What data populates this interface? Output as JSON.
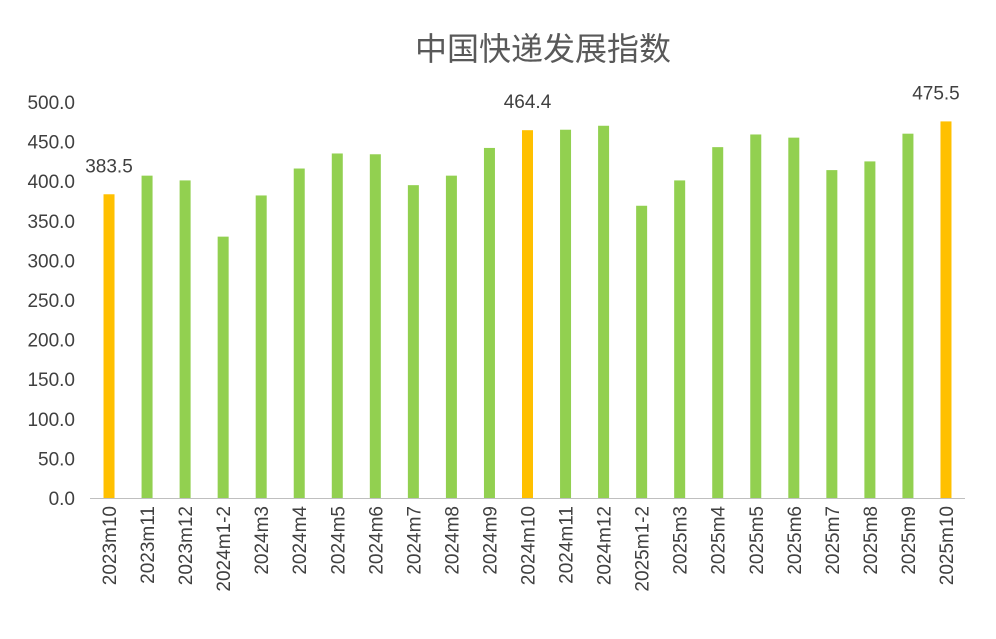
{
  "chart_data": {
    "type": "bar",
    "title": "中国快递发展指数",
    "xlabel": "",
    "ylabel": "",
    "ylim": [
      0,
      500
    ],
    "yticks": [
      "0.0",
      "50.0",
      "100.0",
      "150.0",
      "200.0",
      "250.0",
      "300.0",
      "350.0",
      "400.0",
      "450.0",
      "500.0"
    ],
    "grid": false,
    "legend": "none",
    "categories": [
      "2023m10",
      "2023m11",
      "2023m12",
      "2024m1-2",
      "2024m3",
      "2024m4",
      "2024m5",
      "2024m6",
      "2024m7",
      "2024m8",
      "2024m9",
      "2024m10",
      "2024m11",
      "2024m12",
      "2025m1-2",
      "2025m3",
      "2025m4",
      "2025m5",
      "2025m6",
      "2025m7",
      "2025m8",
      "2025m9",
      "2025m10"
    ],
    "values": [
      383.5,
      407,
      401,
      330,
      382,
      416,
      435,
      434,
      395,
      407,
      442,
      464.4,
      465,
      470,
      369,
      401,
      443,
      459,
      455,
      414,
      425,
      460,
      475.5
    ],
    "highlight": [
      0,
      11,
      22
    ],
    "data_labels": [
      {
        "index": 0,
        "text": "383.5"
      },
      {
        "index": 11,
        "text": "464.4"
      },
      {
        "index": 22,
        "text": "475.5"
      }
    ],
    "colors": {
      "normal": "#92D050",
      "highlight": "#FFC000",
      "axis": "#BFBFBF"
    }
  }
}
